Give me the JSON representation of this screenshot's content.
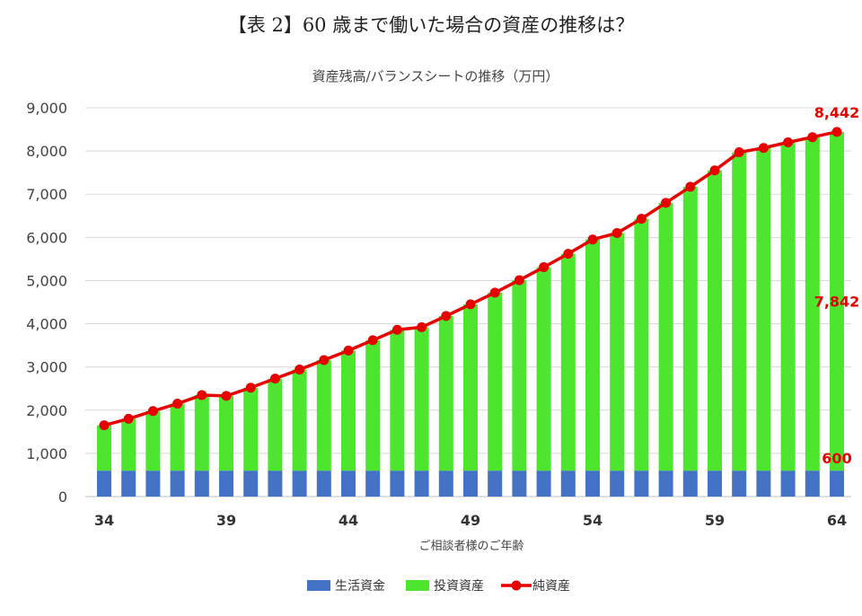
{
  "heading": "【表 2】60 歳まで働いた場合の資産の推移は？",
  "chart_data": {
    "type": "bar",
    "title": "資産残高/バランスシートの推移（万円）",
    "xlabel": "ご相談者様のご年齢",
    "ylabel": "",
    "ylim": [
      0,
      9000
    ],
    "yticks": [
      0,
      1000,
      2000,
      3000,
      4000,
      5000,
      6000,
      7000,
      8000,
      9000
    ],
    "ytick_labels": [
      "0",
      "1,000",
      "2,000",
      "3,000",
      "4,000",
      "5,000",
      "6,000",
      "7,000",
      "8,000",
      "9,000"
    ],
    "x": [
      34,
      35,
      36,
      37,
      38,
      39,
      40,
      41,
      42,
      43,
      44,
      45,
      46,
      47,
      48,
      49,
      50,
      51,
      52,
      53,
      54,
      55,
      56,
      57,
      58,
      59,
      60,
      61,
      62,
      63,
      64
    ],
    "xtick_labels": [
      "34",
      "39",
      "44",
      "49",
      "54",
      "59",
      "64"
    ],
    "grid": true,
    "legend_position": "bottom",
    "stacked": true,
    "series": [
      {
        "name": "生活資金",
        "type": "bar",
        "color": "#4472c4",
        "values": [
          600,
          600,
          600,
          600,
          600,
          600,
          600,
          600,
          600,
          600,
          600,
          600,
          600,
          600,
          600,
          600,
          600,
          600,
          600,
          600,
          600,
          600,
          600,
          600,
          600,
          600,
          600,
          600,
          600,
          600,
          600
        ]
      },
      {
        "name": "投資資産",
        "type": "bar",
        "color": "#4ee52e",
        "values": [
          1050,
          1200,
          1380,
          1550,
          1750,
          1730,
          1920,
          2130,
          2340,
          2560,
          2780,
          3020,
          3260,
          3320,
          3580,
          3850,
          4120,
          4410,
          4710,
          5020,
          5350,
          5500,
          5830,
          6200,
          6570,
          6950,
          7370,
          7470,
          7600,
          7720,
          7842
        ]
      },
      {
        "name": "純資産",
        "type": "line",
        "color": "#e60000",
        "values": [
          1650,
          1800,
          1980,
          2150,
          2350,
          2330,
          2520,
          2730,
          2940,
          3160,
          3380,
          3620,
          3860,
          3920,
          4180,
          4450,
          4720,
          5010,
          5310,
          5620,
          5950,
          6100,
          6430,
          6800,
          7170,
          7550,
          7970,
          8070,
          8200,
          8320,
          8442
        ]
      }
    ],
    "data_labels": [
      {
        "series": "純資産",
        "x": 64,
        "text": "8,442"
      },
      {
        "series": "投資資産",
        "x": 64,
        "text": "7,842"
      },
      {
        "series": "生活資金",
        "x": 64,
        "text": "600"
      }
    ]
  }
}
